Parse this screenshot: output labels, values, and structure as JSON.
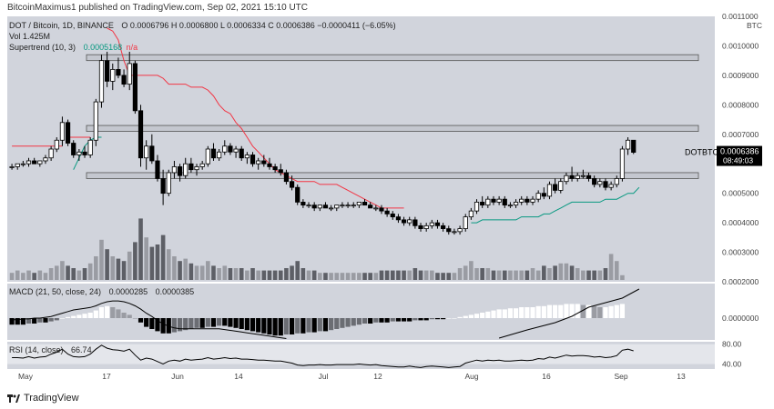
{
  "header": {
    "text": "BitcoinMaximus1 published on TradingView.com, Sep 02, 2021 15:10 UTC"
  },
  "symbol": {
    "title": "DOT / Bitcoin, 1D, BINANCE",
    "ohlc": "O 0.0006796  H 0.0006800  L 0.0006334  C 0.0006386  −0.0000411 (−6.05%)",
    "vol": "Vol  1.425M",
    "supertrend_label": "Supertrend (10, 3)",
    "supertrend_value": "0.0005168",
    "supertrend_suffix": "n/a"
  },
  "price_axis": {
    "currency": "BTC",
    "ticks": [
      "0.0011000",
      "0.0010000",
      "0.0009000",
      "0.0008000",
      "0.0007000",
      "0.0005000",
      "0.0004000",
      "0.0003000",
      "0.0002000"
    ],
    "last_label": "DOTBTC",
    "last_price": "0.0006386",
    "countdown": "08:49:03"
  },
  "macd": {
    "label": "MACD (21, 50, close, 24)",
    "value_a": "0.0000285",
    "value_b": "0.0000385",
    "tick": "0.0000000"
  },
  "rsi": {
    "label": "RSI (14, close)",
    "value": "66.74",
    "ticks": [
      "80.00",
      "40.00"
    ]
  },
  "time_axis": [
    "May",
    "17",
    "Jun",
    "14",
    "Jul",
    "12",
    "Aug",
    "16",
    "Sep",
    "13"
  ],
  "footer": {
    "brand": "TradingView"
  },
  "colors": {
    "up": "#ffffff",
    "down": "#000000",
    "bg": "#d1d4dc",
    "supertrend_down": "#f23645",
    "supertrend_up": "#089981",
    "zone": "#c4c7cf"
  },
  "chart_data": {
    "type": "candlestick",
    "title": "DOT / Bitcoin, 1D, BINANCE",
    "ylim": [
      0.0002,
      0.0011
    ],
    "candles": [
      [
        0.00059,
        0.0006,
        0.00058,
        0.00059
      ],
      [
        0.00059,
        0.0006,
        0.00058,
        0.0006
      ],
      [
        0.0006,
        0.00061,
        0.00059,
        0.0006
      ],
      [
        0.0006,
        0.00062,
        0.00059,
        0.00061
      ],
      [
        0.00061,
        0.00062,
        0.0006,
        0.0006
      ],
      [
        0.0006,
        0.00061,
        0.00059,
        0.00061
      ],
      [
        0.00061,
        0.00063,
        0.0006,
        0.00062
      ],
      [
        0.00062,
        0.00066,
        0.00061,
        0.00065
      ],
      [
        0.00065,
        0.00069,
        0.00064,
        0.00068
      ],
      [
        0.00068,
        0.00076,
        0.00066,
        0.00074
      ],
      [
        0.00074,
        0.00075,
        0.00066,
        0.00067
      ],
      [
        0.00067,
        0.00068,
        0.00062,
        0.00063
      ],
      [
        0.00063,
        0.00065,
        0.00061,
        0.00064
      ],
      [
        0.00064,
        0.00066,
        0.00062,
        0.00063
      ],
      [
        0.00063,
        0.00069,
        0.00062,
        0.00068
      ],
      [
        0.00068,
        0.00082,
        0.00066,
        0.00081
      ],
      [
        0.00081,
        0.00097,
        0.00079,
        0.00095
      ],
      [
        0.00095,
        0.00098,
        0.00086,
        0.00088
      ],
      [
        0.00088,
        0.00094,
        0.00085,
        0.00092
      ],
      [
        0.00092,
        0.00096,
        0.00089,
        0.0009
      ],
      [
        0.0009,
        0.00092,
        0.00086,
        0.00087
      ],
      [
        0.00087,
        0.00098,
        0.00085,
        0.00094
      ],
      [
        0.00094,
        0.00095,
        0.00077,
        0.00078
      ],
      [
        0.00078,
        0.0008,
        0.00059,
        0.00062
      ],
      [
        0.00062,
        0.00068,
        0.00058,
        0.00066
      ],
      [
        0.00066,
        0.0007,
        0.0006,
        0.00061
      ],
      [
        0.00061,
        0.00063,
        0.00054,
        0.00055
      ],
      [
        0.00055,
        0.00058,
        0.00046,
        0.0005
      ],
      [
        0.0005,
        0.00058,
        0.00049,
        0.00057
      ],
      [
        0.00057,
        0.00061,
        0.00055,
        0.00059
      ],
      [
        0.00059,
        0.0006,
        0.00054,
        0.00056
      ],
      [
        0.00056,
        0.00062,
        0.00055,
        0.0006
      ],
      [
        0.0006,
        0.00062,
        0.00057,
        0.00058
      ],
      [
        0.00058,
        0.0006,
        0.00056,
        0.00059
      ],
      [
        0.00059,
        0.00061,
        0.00058,
        0.0006
      ],
      [
        0.0006,
        0.00066,
        0.00059,
        0.00065
      ],
      [
        0.00065,
        0.00067,
        0.00061,
        0.00062
      ],
      [
        0.00062,
        0.00065,
        0.00061,
        0.00064
      ],
      [
        0.00064,
        0.00068,
        0.00063,
        0.00066
      ],
      [
        0.00066,
        0.00067,
        0.00063,
        0.00064
      ],
      [
        0.00064,
        0.00066,
        0.00062,
        0.00065
      ],
      [
        0.00065,
        0.00066,
        0.00061,
        0.00062
      ],
      [
        0.00062,
        0.00064,
        0.0006,
        0.00063
      ],
      [
        0.00063,
        0.00064,
        0.00059,
        0.0006
      ],
      [
        0.0006,
        0.00062,
        0.00058,
        0.00061
      ],
      [
        0.00061,
        0.00063,
        0.00059,
        0.0006
      ],
      [
        0.0006,
        0.00062,
        0.00058,
        0.00059
      ],
      [
        0.00059,
        0.0006,
        0.00057,
        0.00058
      ],
      [
        0.00058,
        0.0006,
        0.00056,
        0.00057
      ],
      [
        0.00057,
        0.00058,
        0.00053,
        0.00054
      ],
      [
        0.00054,
        0.00056,
        0.00051,
        0.00052
      ],
      [
        0.00052,
        0.00053,
        0.00046,
        0.00047
      ],
      [
        0.00047,
        0.00048,
        0.00045,
        0.00046
      ],
      [
        0.00046,
        0.00047,
        0.00045,
        0.00046
      ],
      [
        0.00046,
        0.00047,
        0.00044,
        0.00045
      ],
      [
        0.00045,
        0.00046,
        0.00044,
        0.00046
      ],
      [
        0.00046,
        0.00047,
        0.00045,
        0.00045
      ],
      [
        0.00045,
        0.00046,
        0.00044,
        0.00045
      ],
      [
        0.00045,
        0.00046,
        0.00044,
        0.00046
      ],
      [
        0.00046,
        0.00047,
        0.00045,
        0.00046
      ],
      [
        0.00046,
        0.00047,
        0.00045,
        0.00046
      ],
      [
        0.00046,
        0.00047,
        0.00045,
        0.00046
      ],
      [
        0.00046,
        0.00047,
        0.00045,
        0.00047
      ],
      [
        0.00047,
        0.00048,
        0.00046,
        0.00046
      ],
      [
        0.00046,
        0.00047,
        0.00045,
        0.00045
      ],
      [
        0.00045,
        0.00046,
        0.00044,
        0.00045
      ],
      [
        0.00045,
        0.00046,
        0.00043,
        0.00044
      ],
      [
        0.00044,
        0.00045,
        0.00042,
        0.00043
      ],
      [
        0.00043,
        0.00044,
        0.00041,
        0.00042
      ],
      [
        0.00042,
        0.00043,
        0.0004,
        0.00041
      ],
      [
        0.00041,
        0.00042,
        0.00039,
        0.0004
      ],
      [
        0.0004,
        0.00042,
        0.00039,
        0.00041
      ],
      [
        0.00041,
        0.00042,
        0.00038,
        0.00039
      ],
      [
        0.00039,
        0.0004,
        0.00037,
        0.00038
      ],
      [
        0.00038,
        0.0004,
        0.00037,
        0.00039
      ],
      [
        0.00039,
        0.00041,
        0.00038,
        0.0004
      ],
      [
        0.0004,
        0.00041,
        0.00038,
        0.00039
      ],
      [
        0.00039,
        0.0004,
        0.00037,
        0.00038
      ],
      [
        0.00038,
        0.00039,
        0.00036,
        0.00037
      ],
      [
        0.00037,
        0.00038,
        0.00036,
        0.00037
      ],
      [
        0.00037,
        0.00039,
        0.00036,
        0.00038
      ],
      [
        0.00038,
        0.00043,
        0.00037,
        0.00042
      ],
      [
        0.00042,
        0.00045,
        0.00041,
        0.00044
      ],
      [
        0.00044,
        0.00048,
        0.00043,
        0.00047
      ],
      [
        0.00047,
        0.00049,
        0.00045,
        0.00046
      ],
      [
        0.00046,
        0.00049,
        0.00045,
        0.00048
      ],
      [
        0.00048,
        0.00049,
        0.00046,
        0.00047
      ],
      [
        0.00047,
        0.00049,
        0.00046,
        0.00048
      ],
      [
        0.00048,
        0.00049,
        0.00045,
        0.00046
      ],
      [
        0.00046,
        0.00047,
        0.00045,
        0.00046
      ],
      [
        0.00046,
        0.00048,
        0.00045,
        0.00047
      ],
      [
        0.00047,
        0.00049,
        0.00046,
        0.00048
      ],
      [
        0.00048,
        0.00049,
        0.00046,
        0.00047
      ],
      [
        0.00047,
        0.00049,
        0.00046,
        0.00048
      ],
      [
        0.00048,
        0.00051,
        0.00047,
        0.0005
      ],
      [
        0.0005,
        0.00052,
        0.00048,
        0.00049
      ],
      [
        0.00049,
        0.00054,
        0.00048,
        0.00053
      ],
      [
        0.00053,
        0.00055,
        0.0005,
        0.00051
      ],
      [
        0.00051,
        0.00055,
        0.0005,
        0.00054
      ],
      [
        0.00054,
        0.00057,
        0.00053,
        0.00056
      ],
      [
        0.00056,
        0.00059,
        0.00054,
        0.00055
      ],
      [
        0.00055,
        0.00057,
        0.00054,
        0.00056
      ],
      [
        0.00056,
        0.00058,
        0.00055,
        0.00056
      ],
      [
        0.00056,
        0.00057,
        0.00054,
        0.00055
      ],
      [
        0.00055,
        0.00056,
        0.00052,
        0.00053
      ],
      [
        0.00053,
        0.00055,
        0.00052,
        0.00054
      ],
      [
        0.00054,
        0.00055,
        0.00051,
        0.00052
      ],
      [
        0.00052,
        0.00054,
        0.00051,
        0.00053
      ],
      [
        0.00053,
        0.00056,
        0.00052,
        0.00055
      ],
      [
        0.00055,
        0.00066,
        0.00054,
        0.00065
      ],
      [
        0.00065,
        0.00069,
        0.00063,
        0.00068
      ],
      [
        0.00068,
        0.00068,
        0.000633,
        0.000639
      ]
    ],
    "volume": [
      0.3,
      0.4,
      0.3,
      0.4,
      0.3,
      0.4,
      0.3,
      0.5,
      0.6,
      0.8,
      0.6,
      0.5,
      0.4,
      0.5,
      0.7,
      1.0,
      1.7,
      1.3,
      1.0,
      0.9,
      0.8,
      1.2,
      1.6,
      2.6,
      1.8,
      1.4,
      1.5,
      1.9,
      1.3,
      1.0,
      0.8,
      0.9,
      0.7,
      0.6,
      0.6,
      0.8,
      0.6,
      0.5,
      0.6,
      0.5,
      0.5,
      0.5,
      0.4,
      0.5,
      0.4,
      0.4,
      0.4,
      0.4,
      0.4,
      0.5,
      0.6,
      0.8,
      0.5,
      0.4,
      0.4,
      0.3,
      0.3,
      0.3,
      0.3,
      0.3,
      0.3,
      0.3,
      0.3,
      0.3,
      0.3,
      0.3,
      0.4,
      0.4,
      0.4,
      0.4,
      0.4,
      0.4,
      0.5,
      0.4,
      0.4,
      0.4,
      0.3,
      0.3,
      0.3,
      0.3,
      0.5,
      0.6,
      0.8,
      0.5,
      0.5,
      0.5,
      0.4,
      0.4,
      0.4,
      0.4,
      0.4,
      0.4,
      0.4,
      0.5,
      0.4,
      0.6,
      0.5,
      0.6,
      0.7,
      0.7,
      0.6,
      0.5,
      0.4,
      0.4,
      0.4,
      0.4,
      0.5,
      1.1,
      0.8,
      0.2
    ],
    "supertrend": {
      "down_segments": [
        {
          "from": 0,
          "to": 9,
          "value": 0.00066
        },
        {
          "from": 10,
          "to": 14,
          "value": 0.00069
        },
        {
          "from": 17,
          "to": 70,
          "path": [
            0.00106,
            0.00105,
            0.00102,
            0.00095,
            0.0009,
            0.0009,
            0.0009,
            0.0009,
            0.0009,
            0.0009,
            0.00089,
            0.00087,
            0.00087,
            0.00087,
            0.00087,
            0.00086,
            0.00086,
            0.00086,
            0.00085,
            0.00083,
            0.0008,
            0.00078,
            0.00077,
            0.00074,
            0.00072,
            0.00069,
            0.00066,
            0.00064,
            0.00062,
            0.0006,
            0.00058,
            0.00057,
            0.00056,
            0.00055,
            0.00054,
            0.00054,
            0.00054,
            0.00054,
            0.00053,
            0.00053,
            0.00053,
            0.00053,
            0.00052,
            0.00051,
            0.0005,
            0.00049,
            0.00048,
            0.00047,
            0.00046,
            0.00045,
            0.00045,
            0.00045,
            0.00045,
            0.00045
          ]
        }
      ],
      "up_segments": [
        {
          "from": 11,
          "to": 16,
          "path": [
            0.00058,
            0.00062,
            0.00066,
            0.00068,
            0.00069,
            0.00069
          ]
        },
        {
          "from": 82,
          "to": 112,
          "path": [
            0.0004,
            0.0004,
            0.00041,
            0.00041,
            0.00041,
            0.00041,
            0.00041,
            0.00041,
            0.00041,
            0.00042,
            0.00042,
            0.00042,
            0.00042,
            0.00043,
            0.00043,
            0.00044,
            0.00045,
            0.00046,
            0.00047,
            0.00047,
            0.00047,
            0.00047,
            0.00047,
            0.00047,
            0.00048,
            0.00048,
            0.00048,
            0.00049,
            0.0005,
            0.0005,
            0.00052
          ]
        }
      ]
    },
    "zones": [
      {
        "low": 0.00095,
        "high": 0.00097
      },
      {
        "low": 0.00071,
        "high": 0.00073
      },
      {
        "low": 0.00055,
        "high": 0.00057
      }
    ],
    "macd": {
      "histogram": [
        -0.6,
        -0.6,
        -0.6,
        -0.5,
        -0.5,
        -0.4,
        -0.4,
        -0.3,
        -0.2,
        0.0,
        0.1,
        0.2,
        0.3,
        0.4,
        0.5,
        0.7,
        1.0,
        1.1,
        1.0,
        0.8,
        0.5,
        0.3,
        0.0,
        -0.4,
        -0.8,
        -1.0,
        -1.2,
        -1.4,
        -1.4,
        -1.3,
        -1.2,
        -1.1,
        -1.0,
        -0.9,
        -0.9,
        -0.8,
        -0.8,
        -0.7,
        -0.7,
        -0.8,
        -0.9,
        -1.0,
        -1.1,
        -1.2,
        -1.3,
        -1.4,
        -1.5,
        -1.6,
        -1.6,
        -1.5,
        -1.5,
        -1.4,
        -1.4,
        -1.3,
        -1.3,
        -1.2,
        -1.2,
        -1.1,
        -1.0,
        -0.9,
        -0.8,
        -0.7,
        -0.6,
        -0.5,
        -0.5,
        -0.4,
        -0.4,
        -0.4,
        -0.3,
        -0.3,
        -0.3,
        -0.3,
        -0.2,
        -0.2,
        -0.2,
        -0.1,
        -0.1,
        -0.1,
        0.0,
        0.0,
        0.1,
        0.2,
        0.3,
        0.4,
        0.5,
        0.6,
        0.7,
        0.8,
        0.8,
        0.9,
        0.9,
        1.0,
        1.0,
        1.0,
        1.1,
        1.1,
        1.2,
        1.2,
        1.2,
        1.3,
        1.3,
        1.3,
        1.2,
        1.2,
        1.1,
        1.0,
        1.0,
        1.1,
        1.2,
        1.3
      ],
      "line": [
        -0.2,
        -0.2,
        -0.1,
        -0.1,
        0.0,
        0.0,
        0.1,
        0.2,
        0.4,
        0.6,
        0.8,
        1.0,
        1.1,
        1.2,
        1.3,
        1.5,
        1.8,
        2.0,
        2.1,
        2.1,
        2.0,
        1.8,
        1.5,
        1.1,
        0.6,
        0.2,
        -0.3,
        -0.7,
        -1.0,
        -1.2,
        -1.3,
        -1.3,
        -1.3,
        -1.3,
        -1.3,
        -1.3,
        -1.3,
        -1.3,
        -1.4,
        -1.5,
        -1.6,
        -1.7,
        -1.8,
        -1.9,
        -2.0,
        -2.1,
        -2.2,
        -2.3,
        -2.4,
        -2.5
      ]
    },
    "rsi": [
      53,
      53,
      52,
      55,
      52,
      54,
      55,
      60,
      64,
      70,
      60,
      55,
      54,
      55,
      60,
      70,
      78,
      72,
      69,
      68,
      66,
      70,
      58,
      48,
      52,
      50,
      45,
      40,
      46,
      48,
      46,
      50,
      48,
      49,
      50,
      53,
      50,
      51,
      53,
      51,
      52,
      50,
      50,
      49,
      48,
      48,
      47,
      46,
      46,
      44,
      42,
      38,
      37,
      38,
      38,
      39,
      38,
      38,
      39,
      39,
      39,
      39,
      40,
      39,
      38,
      39,
      37,
      36,
      35,
      34,
      34,
      36,
      34,
      33,
      35,
      36,
      35,
      34,
      33,
      34,
      35,
      42,
      45,
      48,
      46,
      48,
      47,
      48,
      46,
      46,
      47,
      48,
      47,
      48,
      51,
      50,
      54,
      52,
      55,
      58,
      56,
      57,
      57,
      56,
      54,
      55,
      53,
      54,
      57,
      68,
      70,
      66.74
    ]
  }
}
